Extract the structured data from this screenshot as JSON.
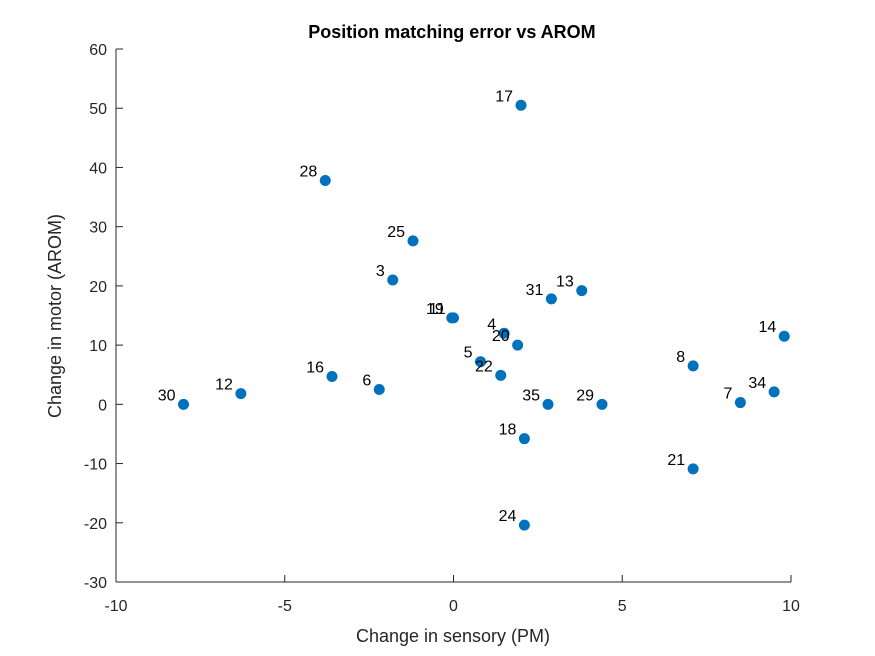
{
  "chart_data": {
    "type": "scatter",
    "title": "Position matching error vs AROM",
    "xlabel": "Change in sensory (PM)",
    "ylabel": "Change in motor (AROM)",
    "xlim": [
      -10,
      10
    ],
    "ylim": [
      -30,
      60
    ],
    "xticks": [
      -10,
      -5,
      0,
      5,
      10
    ],
    "yticks": [
      -30,
      -20,
      -10,
      0,
      10,
      20,
      30,
      40,
      50,
      60
    ],
    "grid": false,
    "legend": "none",
    "marker_color": "#0072BD",
    "points": [
      {
        "label": "17",
        "x": 2.0,
        "y": 50.5
      },
      {
        "label": "28",
        "x": -3.8,
        "y": 37.8
      },
      {
        "label": "25",
        "x": -1.2,
        "y": 27.6
      },
      {
        "label": "3",
        "x": -1.8,
        "y": 21.0
      },
      {
        "label": "31",
        "x": 2.9,
        "y": 17.8
      },
      {
        "label": "13",
        "x": 3.8,
        "y": 19.2
      },
      {
        "label": "19",
        "x": -0.05,
        "y": 14.6
      },
      {
        "label": "11",
        "x": 0.0,
        "y": 14.6
      },
      {
        "label": "4",
        "x": 1.5,
        "y": 12.0
      },
      {
        "label": "20",
        "x": 1.9,
        "y": 10.0
      },
      {
        "label": "14",
        "x": 9.8,
        "y": 11.5
      },
      {
        "label": "5",
        "x": 0.8,
        "y": 7.2
      },
      {
        "label": "22",
        "x": 1.4,
        "y": 4.9
      },
      {
        "label": "8",
        "x": 7.1,
        "y": 6.5
      },
      {
        "label": "16",
        "x": -3.6,
        "y": 4.7
      },
      {
        "label": "6",
        "x": -2.2,
        "y": 2.5
      },
      {
        "label": "12",
        "x": -6.3,
        "y": 1.8
      },
      {
        "label": "30",
        "x": -8.0,
        "y": 0.0
      },
      {
        "label": "35",
        "x": 2.8,
        "y": 0.0
      },
      {
        "label": "29",
        "x": 4.4,
        "y": 0.0
      },
      {
        "label": "7",
        "x": 8.5,
        "y": 0.3
      },
      {
        "label": "34",
        "x": 9.5,
        "y": 2.1
      },
      {
        "label": "18",
        "x": 2.1,
        "y": -5.8
      },
      {
        "label": "21",
        "x": 7.1,
        "y": -10.9
      },
      {
        "label": "24",
        "x": 2.1,
        "y": -20.4
      }
    ]
  }
}
